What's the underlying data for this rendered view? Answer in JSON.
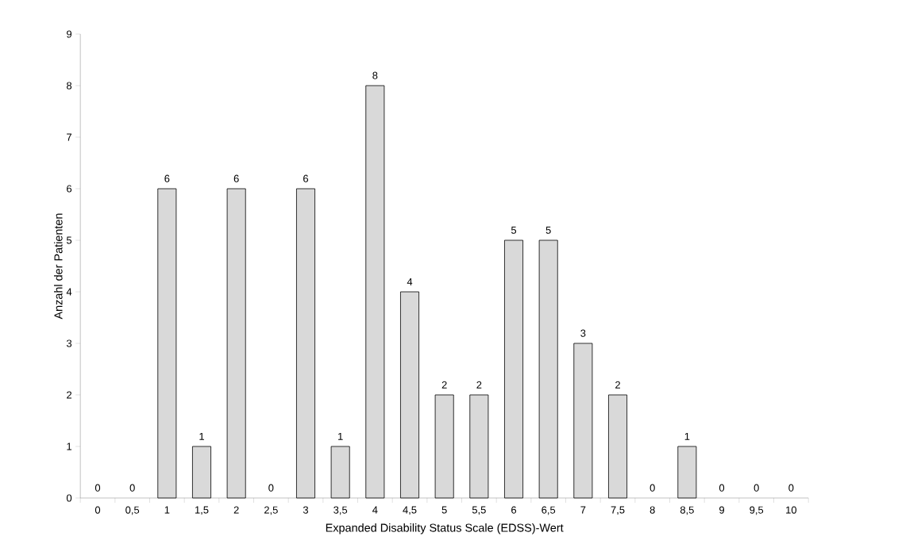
{
  "chart_data": {
    "type": "bar",
    "xlabel": "Expanded Disability Status Scale (EDSS)-Wert",
    "ylabel": "Anzahl der Patienten",
    "categories": [
      "0",
      "0,5",
      "1",
      "1,5",
      "2",
      "2,5",
      "3",
      "3,5",
      "4",
      "4,5",
      "5",
      "5,5",
      "6",
      "6,5",
      "7",
      "7,5",
      "8",
      "8,5",
      "9",
      "9,5",
      "10"
    ],
    "values": [
      0,
      0,
      6,
      1,
      6,
      0,
      6,
      1,
      8,
      4,
      2,
      2,
      5,
      5,
      3,
      2,
      0,
      1,
      0,
      0,
      0
    ],
    "color": "#d9d9d9",
    "ylim": [
      0,
      9
    ],
    "yticks": [
      0,
      1,
      2,
      3,
      4,
      5,
      6,
      7,
      8,
      9
    ],
    "grid": false,
    "data_labels": true
  }
}
